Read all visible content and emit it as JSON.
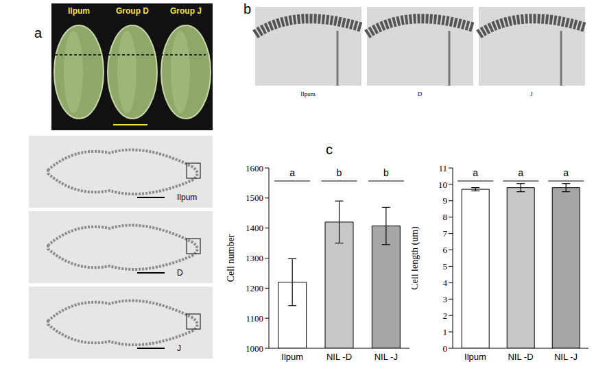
{
  "panel_labels": [
    "a",
    "b",
    "c"
  ],
  "photos": {
    "spikelets": [
      "Ilpum",
      "Group D",
      "Group J"
    ],
    "cross_sections": [
      "Ilpum",
      "D",
      "J"
    ],
    "magnified_sections": [
      "Ilpum",
      "D",
      "J"
    ]
  },
  "chart_data": [
    {
      "type": "bar",
      "y_label": "Cell number",
      "categories": [
        "Ilpum",
        "NIL -D",
        "NIL -J"
      ],
      "values": [
        1220,
        1420,
        1407
      ],
      "errors": [
        78,
        70,
        62
      ],
      "significance": [
        "a",
        "b",
        "b"
      ],
      "colors": [
        "#ffffff",
        "#c8c8c8",
        "#a6a6a6"
      ],
      "ylim": [
        1000,
        1600
      ],
      "yticks": [
        1000,
        1100,
        1200,
        1300,
        1400,
        1500,
        1600
      ],
      "grid": false
    },
    {
      "type": "bar",
      "y_label": "Cell length  (um)",
      "categories": [
        "Ilpum",
        "NIL -D",
        "NIL -J"
      ],
      "values": [
        9.7,
        9.8,
        9.8
      ],
      "errors": [
        0.1,
        0.25,
        0.25
      ],
      "significance": [
        "a",
        "a",
        "a"
      ],
      "colors": [
        "#ffffff",
        "#c8c8c8",
        "#a6a6a6"
      ],
      "ylim": [
        0,
        11
      ],
      "yticks": [
        0,
        1,
        2,
        3,
        4,
        5,
        6,
        7,
        8,
        9,
        10,
        11
      ],
      "grid": false
    }
  ]
}
